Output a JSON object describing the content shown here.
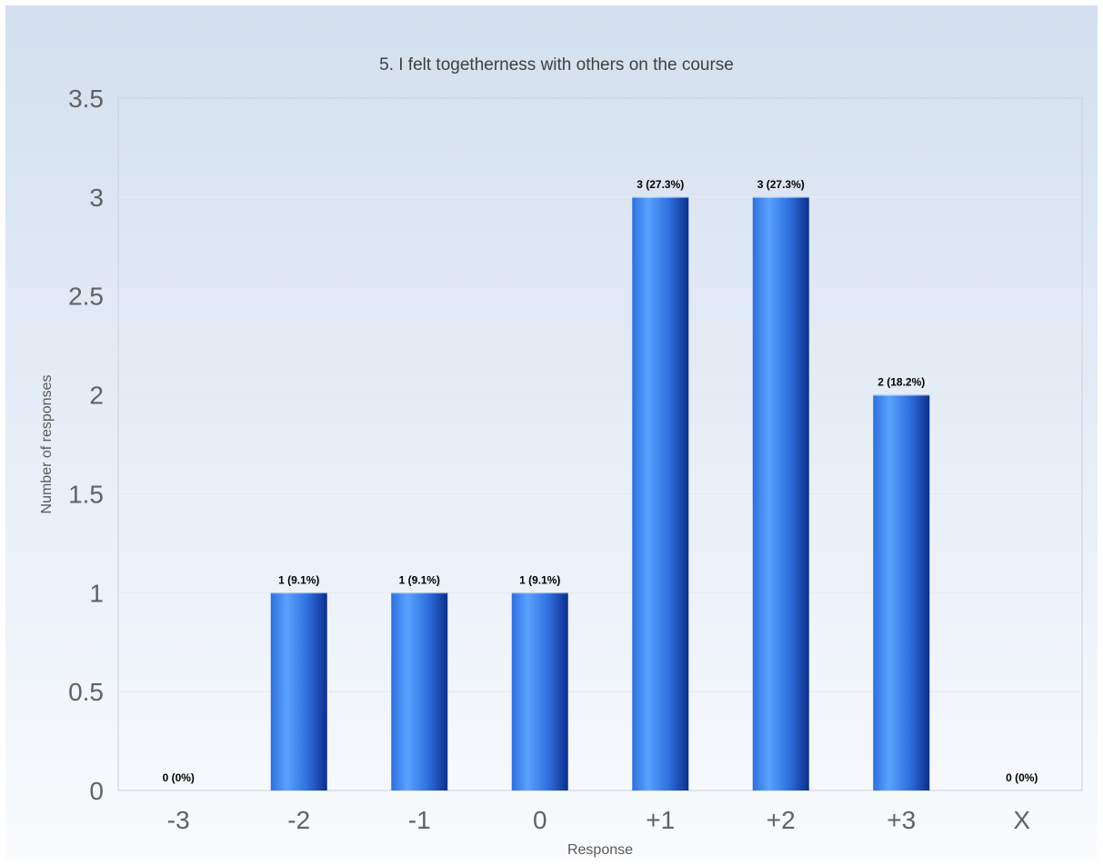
{
  "chart_data": {
    "type": "bar",
    "title": "5. I felt togetherness with others on the course",
    "xlabel": "Response",
    "ylabel": "Number of responses",
    "categories": [
      "-3",
      "-2",
      "-1",
      "0",
      "+1",
      "+2",
      "+3",
      "X"
    ],
    "values": [
      0,
      1,
      1,
      1,
      3,
      3,
      2,
      0
    ],
    "data_labels": [
      "0 (0%)",
      "1 (9.1%)",
      "1 (9.1%)",
      "1 (9.1%)",
      "3 (27.3%)",
      "3 (27.3%)",
      "2 (18.2%)",
      "0 (0%)"
    ],
    "ylim": [
      0,
      3.5
    ],
    "yticks": [
      "0",
      "0.5",
      "1",
      "1.5",
      "2",
      "2.5",
      "3",
      "3.5"
    ],
    "grid": true,
    "legend": "none",
    "colors": {
      "bar_dark": "#0a2f8c",
      "bar_mid": "#2f6fde",
      "bar_light": "#5aa2ff",
      "background_top": "#d3e0ef",
      "background_bottom": "#f9fbfd",
      "gridline": "#e4e9ef",
      "plot_border": "#c9d0d8"
    }
  }
}
